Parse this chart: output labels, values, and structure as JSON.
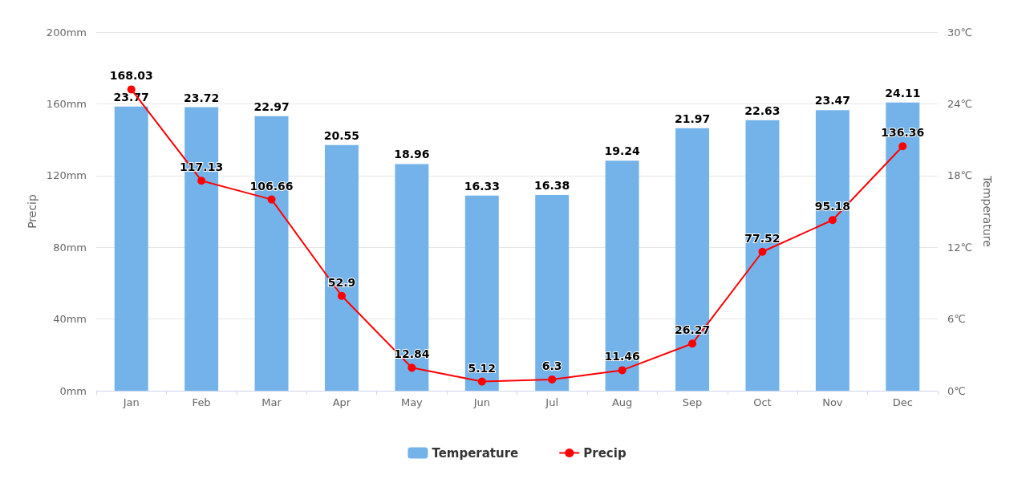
{
  "chart_data": {
    "type": "bar",
    "categories": [
      "Jan",
      "Feb",
      "Mar",
      "Apr",
      "May",
      "Jun",
      "Jul",
      "Aug",
      "Sep",
      "Oct",
      "Nov",
      "Dec"
    ],
    "series": [
      {
        "name": "Temperature",
        "axis": "y2",
        "color": "#74b3ea",
        "values": [
          23.77,
          23.72,
          22.97,
          20.55,
          18.96,
          16.33,
          16.38,
          19.24,
          21.97,
          22.63,
          23.47,
          24.11
        ]
      },
      {
        "name": "Precip",
        "type": "line",
        "axis": "y",
        "color": "#ff0000",
        "values": [
          168.03,
          117.13,
          106.66,
          52.9,
          12.84,
          5.12,
          6.3,
          11.46,
          26.27,
          77.52,
          95.18,
          136.36
        ]
      }
    ],
    "ylabel": "Precip",
    "y2label": "Temperature",
    "ylim": [
      0,
      200
    ],
    "yticks": [
      {
        "value": 0,
        "label": "0mm"
      },
      {
        "value": 40,
        "label": "40mm"
      },
      {
        "value": 80,
        "label": "80mm"
      },
      {
        "value": 120,
        "label": "120mm"
      },
      {
        "value": 160,
        "label": "160mm"
      },
      {
        "value": 200,
        "label": "200mm"
      }
    ],
    "y2lim": [
      0,
      30
    ],
    "y2ticks": [
      {
        "value": 0,
        "label": "0℃"
      },
      {
        "value": 6,
        "label": "6℃"
      },
      {
        "value": 12,
        "label": "12℃"
      },
      {
        "value": 18,
        "label": "18℃"
      },
      {
        "value": 24,
        "label": "24℃"
      },
      {
        "value": 30,
        "label": "30℃"
      }
    ],
    "data_labels": true,
    "grid": "y",
    "legend": "bottom",
    "marker": "circle",
    "line_style": "solid"
  }
}
